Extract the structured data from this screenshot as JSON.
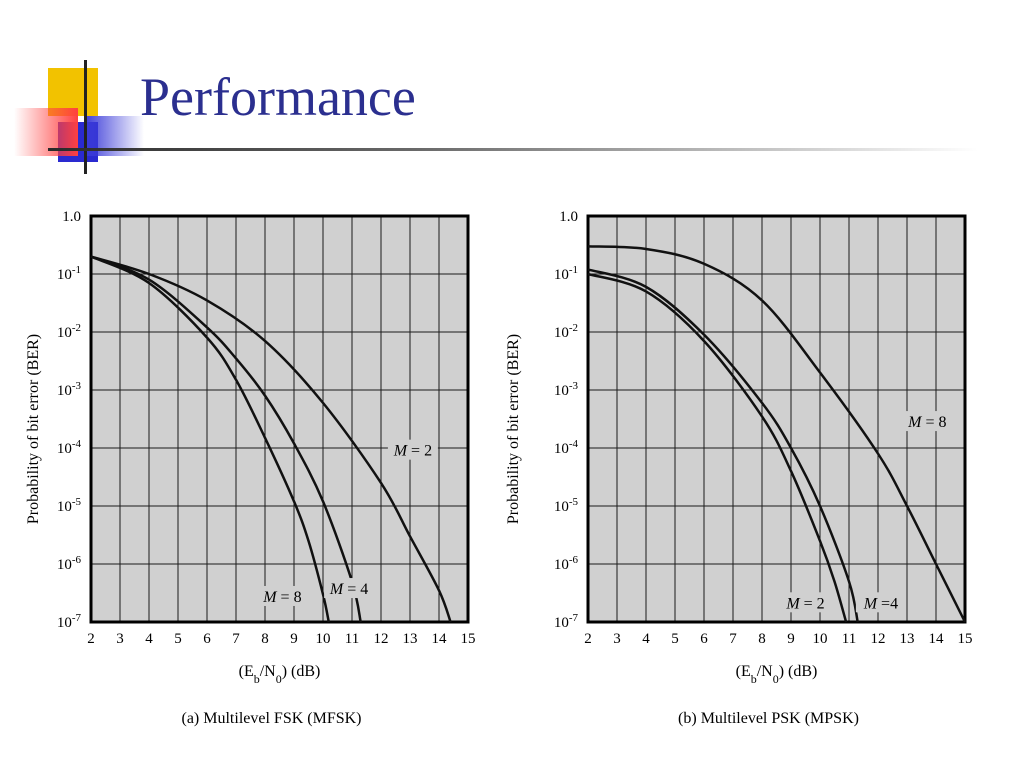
{
  "slide": {
    "title": "Performance",
    "colors": {
      "title": "#2b2f8f",
      "plot_bg": "#d0d0d0",
      "grid": "#1a1a1a"
    },
    "logo_icon": "stacked-squares-logo"
  },
  "chart_data": [
    {
      "type": "line",
      "caption": "(a) Multilevel FSK (MFSK)",
      "ylabel": "Probability of bit error (BER)",
      "xlabel": "(E_b/N_0) (dB)",
      "xlim": [
        2,
        15
      ],
      "ylim": [
        1e-07,
        1.0
      ],
      "yscale": "log",
      "grid": true,
      "xticks": [
        2,
        3,
        4,
        5,
        6,
        7,
        8,
        9,
        10,
        11,
        12,
        13,
        14,
        15
      ],
      "ytick_labels": [
        {
          "value": 1.0,
          "base": "1.0",
          "exp": ""
        },
        {
          "value": 0.1,
          "base": "10",
          "exp": "-1"
        },
        {
          "value": 0.01,
          "base": "10",
          "exp": "-2"
        },
        {
          "value": 0.001,
          "base": "10",
          "exp": "-3"
        },
        {
          "value": 0.0001,
          "base": "10",
          "exp": "-4"
        },
        {
          "value": 1e-05,
          "base": "10",
          "exp": "-5"
        },
        {
          "value": 1e-06,
          "base": "10",
          "exp": "-6"
        },
        {
          "value": 1e-07,
          "base": "10",
          "exp": "-7"
        }
      ],
      "series": [
        {
          "name": "M = 2",
          "x": [
            2,
            4,
            6,
            8,
            10,
            12,
            13,
            14,
            14.4
          ],
          "y": [
            0.2,
            0.1,
            0.035,
            0.007,
            0.0006,
            2.5e-05,
            3e-06,
            3.5e-07,
            1e-07
          ]
        },
        {
          "name": "M = 4",
          "x": [
            2,
            4,
            6,
            7,
            8,
            9,
            10,
            11,
            11.3
          ],
          "y": [
            0.2,
            0.08,
            0.012,
            0.0035,
            0.0008,
            0.00012,
            1.2e-05,
            5e-07,
            1e-07
          ]
        },
        {
          "name": "M = 8",
          "x": [
            2,
            4,
            6,
            7,
            8,
            9,
            9.5,
            10,
            10.2
          ],
          "y": [
            0.2,
            0.07,
            0.008,
            0.0015,
            0.00015,
            1.2e-05,
            2.5e-06,
            3e-07,
            1e-07
          ]
        }
      ],
      "annotations": [
        {
          "label": "M = 2",
          "x": 13.1,
          "y": 9e-05
        },
        {
          "label": "M = 4",
          "x": 10.9,
          "y": 3.7e-07
        },
        {
          "label": "M = 8",
          "x": 8.6,
          "y": 2.7e-07
        }
      ]
    },
    {
      "type": "line",
      "caption": "(b) Multilevel PSK (MPSK)",
      "ylabel": "Probability of bit error (BER)",
      "xlabel": "(E_b/N_0) (dB)",
      "xlim": [
        2,
        15
      ],
      "ylim": [
        1e-07,
        1.0
      ],
      "yscale": "log",
      "grid": true,
      "xticks": [
        2,
        3,
        4,
        5,
        6,
        7,
        8,
        9,
        10,
        11,
        12,
        13,
        14,
        15
      ],
      "ytick_labels": [
        {
          "value": 1.0,
          "base": "1.0",
          "exp": ""
        },
        {
          "value": 0.1,
          "base": "10",
          "exp": "-1"
        },
        {
          "value": 0.01,
          "base": "10",
          "exp": "-2"
        },
        {
          "value": 0.001,
          "base": "10",
          "exp": "-3"
        },
        {
          "value": 0.0001,
          "base": "10",
          "exp": "-4"
        },
        {
          "value": 1e-05,
          "base": "10",
          "exp": "-5"
        },
        {
          "value": 1e-06,
          "base": "10",
          "exp": "-6"
        },
        {
          "value": 1e-07,
          "base": "10",
          "exp": "-7"
        }
      ],
      "series": [
        {
          "name": "M = 2",
          "x": [
            2,
            4,
            6,
            8,
            9,
            10,
            10.5,
            10.9
          ],
          "y": [
            0.1,
            0.05,
            0.007,
            0.00035,
            4e-05,
            2.5e-06,
            5e-07,
            1e-07
          ]
        },
        {
          "name": "M =4",
          "x": [
            2,
            4,
            6,
            8,
            9,
            10,
            11,
            11.3
          ],
          "y": [
            0.12,
            0.06,
            0.009,
            0.0006,
            0.0001,
            1e-05,
            5e-07,
            1e-07
          ]
        },
        {
          "name": "M = 8",
          "x": [
            2,
            4,
            6,
            8,
            10,
            12,
            13,
            14,
            15
          ],
          "y": [
            0.3,
            0.27,
            0.15,
            0.035,
            0.002,
            8e-05,
            1e-05,
            1e-06,
            1e-07
          ]
        }
      ],
      "annotations": [
        {
          "label": "M = 8",
          "x": 13.7,
          "y": 0.00028
        },
        {
          "label": "M = 2",
          "x": 9.5,
          "y": 2.1e-07
        },
        {
          "label": "M =4",
          "x": 12.1,
          "y": 2.1e-07
        }
      ]
    }
  ]
}
